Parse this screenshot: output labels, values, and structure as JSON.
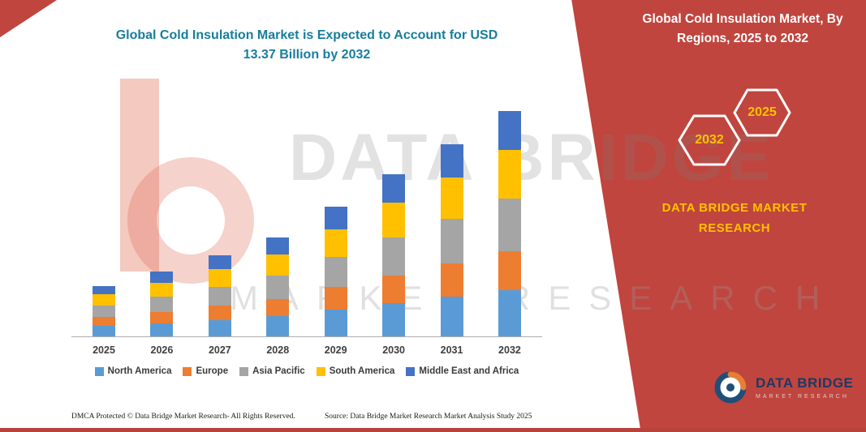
{
  "page": {
    "title": {
      "line1": "Global Cold Insulation Market is Expected to Account for USD",
      "line2": "13.37 Billion by 2032"
    },
    "banner": {
      "heading1": "Global Cold Insulation Market, By",
      "heading2": "Regions, 2025 to 2032",
      "hex_left_label": "2032",
      "hex_right_label": "2025",
      "brand1": "DATA BRIDGE MARKET",
      "brand2": "RESEARCH"
    },
    "watermark": {
      "line1": "DATA BRIDGE",
      "line2": "MARKET RESEARCH"
    },
    "logo": {
      "title": "DATA BRIDGE",
      "subtitle": "MARKET RESEARCH"
    },
    "footer": {
      "dmca": "DMCA Protected © Data Bridge Market Research-  All Rights Reserved.",
      "source": "Source: Data Bridge Market Research  Market Analysis Study 2025"
    }
  },
  "colors": {
    "banner_red": "#C0453E",
    "title_teal": "#177E9B",
    "accent_gold": "#FFC000",
    "logo_navy": "#1F3864"
  },
  "chart_data": {
    "type": "bar",
    "stacked": true,
    "unit": "USD Billion",
    "title": "Global Cold Insulation Market is Expected to Account for USD 13.37 Billion by 2032",
    "xlabel": "",
    "ylabel": "",
    "ylim": [
      0,
      14
    ],
    "grid": false,
    "legend_position": "bottom",
    "categories": [
      "2025",
      "2026",
      "2027",
      "2028",
      "2029",
      "2030",
      "2031",
      "2032"
    ],
    "series": [
      {
        "name": "North America",
        "color": "#5B9BD5",
        "values": [
          0.62,
          0.79,
          0.98,
          1.2,
          1.58,
          1.97,
          2.34,
          2.74
        ]
      },
      {
        "name": "Europe",
        "color": "#ED7D31",
        "values": [
          0.52,
          0.67,
          0.83,
          1.02,
          1.33,
          1.66,
          1.97,
          2.31
        ]
      },
      {
        "name": "Asia Pacific",
        "color": "#A5A5A5",
        "values": [
          0.7,
          0.9,
          1.12,
          1.37,
          1.8,
          2.25,
          2.67,
          3.13
        ]
      },
      {
        "name": "South America",
        "color": "#FFC000",
        "values": [
          0.65,
          0.83,
          1.04,
          1.27,
          1.66,
          2.07,
          2.46,
          2.89
        ]
      },
      {
        "name": "Middle East and Africa",
        "color": "#4472C4",
        "values": [
          0.51,
          0.66,
          0.83,
          1.01,
          1.33,
          1.65,
          1.96,
          2.3
        ]
      }
    ],
    "totals_by_year": [
      3.0,
      3.85,
      4.8,
      5.87,
      7.7,
      9.6,
      11.4,
      13.37
    ]
  }
}
